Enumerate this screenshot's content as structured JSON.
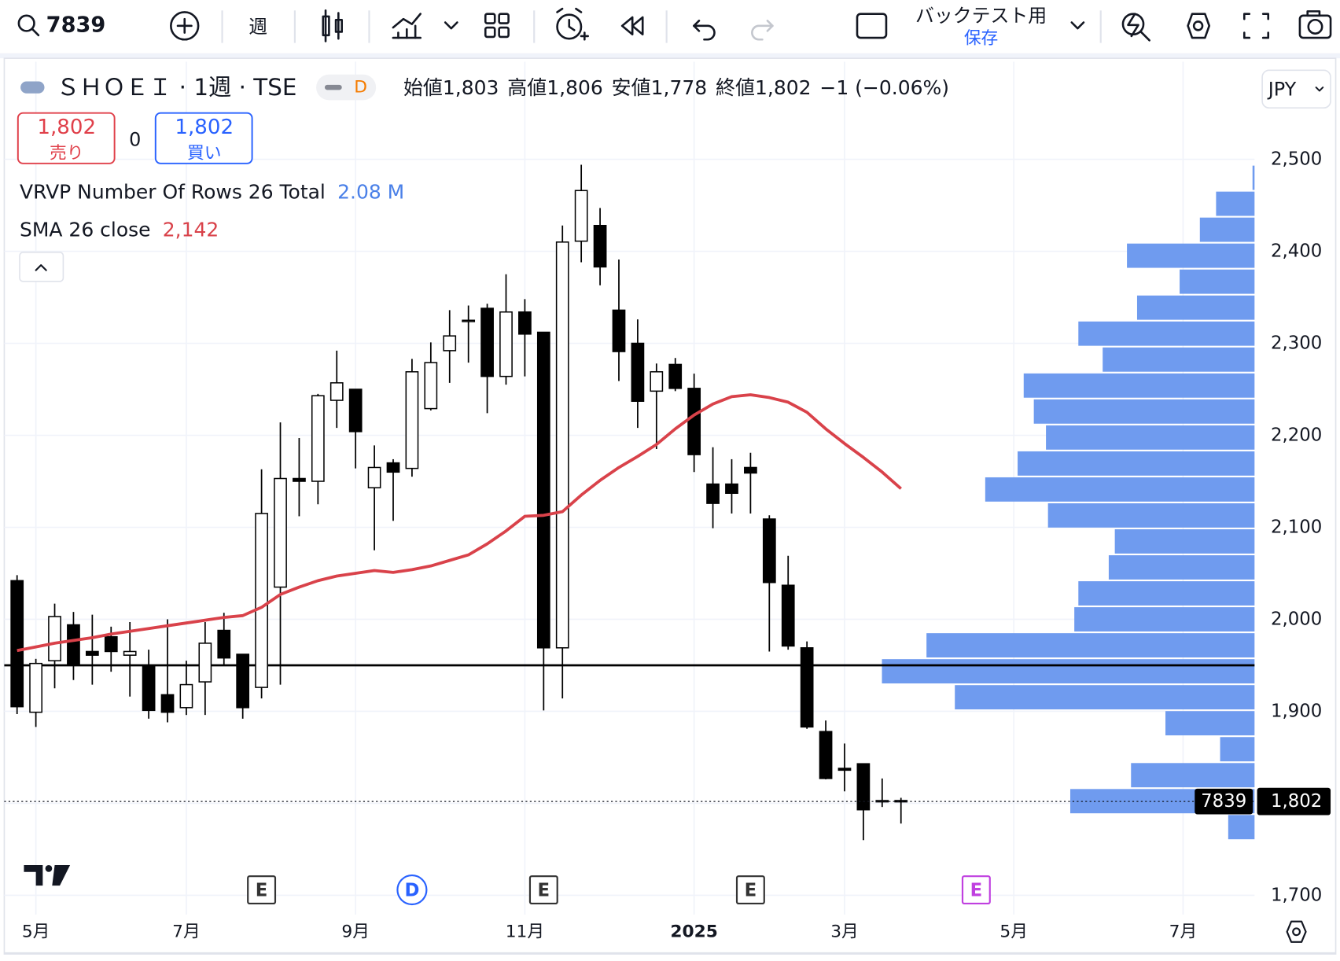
{
  "toolbar": {
    "symbol": "7839",
    "interval": "週",
    "layout_name": "バックテスト用",
    "save": "保存"
  },
  "legend": {
    "title": "ＳＨＯＥＩ · 1週 · TSE",
    "badge": "D",
    "ohlc": [
      {
        "name": "始値",
        "value": "1,803"
      },
      {
        "name": "高値",
        "value": "1,806"
      },
      {
        "name": "安値",
        "value": "1,778"
      },
      {
        "name": "終値",
        "value": "1,802"
      }
    ],
    "change": "−1 (−0.06%)",
    "currency": "JPY"
  },
  "trade": {
    "sell_price": "1,802",
    "sell": "売り",
    "spread": "0",
    "buy_price": "1,802",
    "buy": "買い"
  },
  "indicators": [
    {
      "name": "VRVP Number Of Rows 26 Total",
      "value": "2.08 M",
      "color": "#4a80e8"
    },
    {
      "name": "SMA 26 close",
      "value": "2,142",
      "color": "#d9424a"
    }
  ],
  "chart_data": {
    "type": "candlestick",
    "x": [
      0,
      1,
      2,
      3,
      4,
      5,
      6,
      7,
      8,
      9,
      10,
      11,
      12,
      13,
      14,
      15,
      16,
      17,
      18,
      19,
      20,
      21,
      22,
      23,
      24,
      25,
      26,
      27,
      28,
      29,
      30,
      31,
      32,
      33,
      34,
      35,
      36,
      37,
      38,
      39,
      40,
      41,
      42,
      43,
      44,
      45,
      46,
      47
    ],
    "open": [
      2042,
      1899,
      1955,
      1994,
      1965,
      1981,
      1961,
      1949,
      1918,
      1904,
      1932,
      1988,
      1962,
      1926,
      2035,
      2153,
      2150,
      2238,
      2250,
      2143,
      2170,
      2164,
      2229,
      2292,
      2324,
      2338,
      2264,
      2334,
      2312,
      1969,
      2411,
      2428,
      2336,
      2300,
      2248,
      2277,
      2251,
      2147,
      2147,
      2165,
      2109,
      2037,
      1969,
      1878,
      1838,
      1843,
      1802,
      1803
    ],
    "high": [
      2048,
      1957,
      2017,
      2008,
      2005,
      1992,
      1997,
      1967,
      2000,
      1955,
      1997,
      2007,
      1962,
      2163,
      2214,
      2197,
      2245,
      2292,
      2250,
      2189,
      2174,
      2283,
      2301,
      2336,
      2341,
      2343,
      2375,
      2348,
      2312,
      2428,
      2494,
      2447,
      2391,
      2326,
      2278,
      2284,
      2267,
      2187,
      2174,
      2181,
      2113,
      2069,
      1976,
      1890,
      1865,
      1843,
      1827,
      1806
    ],
    "low": [
      1897,
      1883,
      1925,
      1934,
      1929,
      1943,
      1916,
      1892,
      1888,
      1896,
      1896,
      1950,
      1892,
      1914,
      1929,
      2112,
      2125,
      2208,
      2164,
      2075,
      2107,
      2155,
      2227,
      2257,
      2279,
      2224,
      2255,
      2264,
      1901,
      1914,
      2388,
      2363,
      2259,
      2208,
      2185,
      2248,
      2160,
      2099,
      2115,
      2115,
      1965,
      1967,
      1881,
      1826,
      1813,
      1760,
      1796,
      1778
    ],
    "close": [
      1905,
      1952,
      2003,
      1950,
      1961,
      1965,
      1965,
      1901,
      1899,
      1929,
      1974,
      1958,
      1904,
      2115,
      2153,
      2150,
      2243,
      2257,
      2204,
      2165,
      2160,
      2269,
      2279,
      2308,
      2325,
      2264,
      2334,
      2310,
      1969,
      2410,
      2466,
      2383,
      2291,
      2237,
      2269,
      2251,
      2179,
      2126,
      2137,
      2159,
      2040,
      1971,
      1883,
      1827,
      1836,
      1793,
      1803,
      1802
    ],
    "up_color": "#ffffff",
    "down_color": "#000000",
    "sma": {
      "color": "#d9424a",
      "values": [
        1966,
        1970,
        1974,
        1977,
        1980,
        1984,
        1987,
        1990,
        1993,
        1996,
        1999,
        2002,
        2004,
        2013,
        2027,
        2035,
        2042,
        2047,
        2050,
        2053,
        2051,
        2054,
        2058,
        2064,
        2070,
        2082,
        2096,
        2112,
        2113,
        2117,
        2135,
        2151,
        2165,
        2177,
        2190,
        2207,
        2222,
        2234,
        2242,
        2244,
        2241,
        2236,
        2225,
        2207,
        2191,
        2176,
        2160,
        2142
      ]
    },
    "volume_profile": {
      "color": "#6f9bef",
      "values": [
        13000,
        91000,
        61000,
        17000,
        44000,
        148000,
        184000,
        162000,
        89000,
        87000,
        72000,
        69000,
        102000,
        133000,
        117000,
        103000,
        109000,
        114000,
        75000,
        87000,
        58000,
        37000,
        63000,
        27000,
        19000,
        1000
      ]
    },
    "hline": 1950,
    "price_line": {
      "value": 1802,
      "label": "1,802",
      "symbol": "7839"
    },
    "xlim": [
      -0.68,
      65.8
    ],
    "xticks": [
      {
        "value": 1,
        "label": "5月"
      },
      {
        "value": 9,
        "label": "7月"
      },
      {
        "value": 18,
        "label": "9月"
      },
      {
        "value": 27,
        "label": "11月"
      },
      {
        "value": 36,
        "label": "2025"
      },
      {
        "value": 44,
        "label": "3月"
      },
      {
        "value": 53,
        "label": "5月"
      },
      {
        "value": 62,
        "label": "7月"
      }
    ],
    "ylim": [
      1679,
      2606
    ],
    "yticks": [
      {
        "value": 1700,
        "label": "1,700"
      },
      {
        "value": 1800,
        "label": "1,800"
      },
      {
        "value": 1900,
        "label": "1,900"
      },
      {
        "value": 2000,
        "label": "2,000"
      },
      {
        "value": 2100,
        "label": "2,100"
      },
      {
        "value": 2200,
        "label": "2,200"
      },
      {
        "value": 2300,
        "label": "2,300"
      },
      {
        "value": 2400,
        "label": "2,400"
      },
      {
        "value": 2500,
        "label": "2,500"
      }
    ],
    "grid": true,
    "events": [
      {
        "x": 13,
        "label": "E",
        "color": "#333333"
      },
      {
        "x": 21,
        "label": "D",
        "color": "#2962ff"
      },
      {
        "x": 28,
        "label": "E",
        "color": "#333333"
      },
      {
        "x": 39,
        "label": "E",
        "color": "#333333"
      },
      {
        "x": 51,
        "label": "E",
        "color": "#c040e0"
      }
    ]
  }
}
